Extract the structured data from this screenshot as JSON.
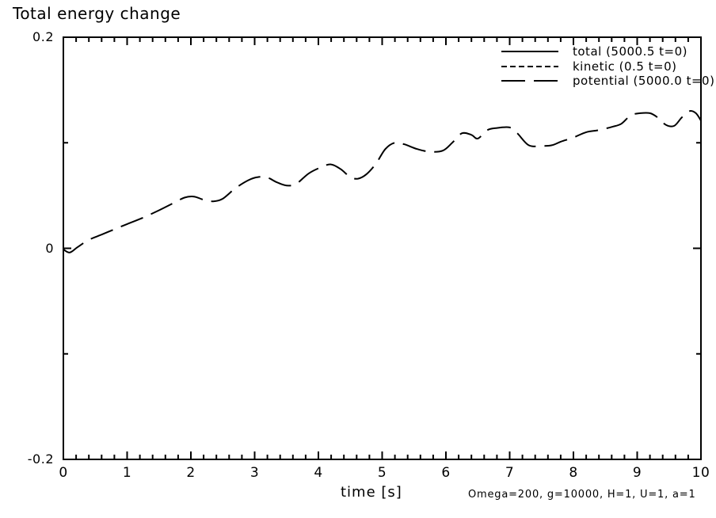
{
  "title": "Total energy change",
  "colors": {
    "foreground": "#000000",
    "background": "#ffffff"
  },
  "legend": {
    "entries": [
      {
        "label": "total (5000.5 t=0)",
        "line_style": "solid"
      },
      {
        "label": "kinetic (0.5 t=0)",
        "line_style": "short-dash"
      },
      {
        "label": "potential (5000.0 t=0)",
        "line_style": "long-dash"
      }
    ]
  },
  "footer": {
    "xlabel": "time [s]",
    "annotation": "Omega=200, g=10000, H=1, U=1, a=1"
  },
  "chart_data": {
    "type": "line",
    "title": "Total energy change",
    "xlabel": "time [s]",
    "ylabel": "",
    "xlim": [
      0,
      10
    ],
    "ylim": [
      -0.2,
      0.2
    ],
    "x_major_ticks": [
      0,
      1,
      2,
      3,
      4,
      5,
      6,
      7,
      8,
      9,
      10
    ],
    "x_tick_labels": [
      "0",
      "1",
      "2",
      "3",
      "4",
      "5",
      "6",
      "7",
      "8",
      "9",
      "10"
    ],
    "x_minor_step": 0.2,
    "y_major_ticks": [
      -0.2,
      0,
      0.2
    ],
    "y_tick_labels": [
      "-0.2",
      "0",
      "0.2"
    ],
    "y_minor_step": 0.1,
    "grid": false,
    "legend_position": "top-right",
    "series": [
      {
        "name": "potential (5000.0 t=0)",
        "line_style": "long-dash",
        "points": [
          [
            0.0,
            -0.001
          ],
          [
            0.1,
            -0.004
          ],
          [
            0.22,
            0.001
          ],
          [
            0.4,
            0.008
          ],
          [
            0.6,
            0.013
          ],
          [
            0.8,
            0.018
          ],
          [
            1.0,
            0.023
          ],
          [
            1.25,
            0.029
          ],
          [
            1.5,
            0.036
          ],
          [
            1.7,
            0.042
          ],
          [
            1.9,
            0.048
          ],
          [
            2.05,
            0.049
          ],
          [
            2.2,
            0.046
          ],
          [
            2.35,
            0.0445
          ],
          [
            2.5,
            0.047
          ],
          [
            2.7,
            0.057
          ],
          [
            2.9,
            0.0645
          ],
          [
            3.05,
            0.0675
          ],
          [
            3.2,
            0.067
          ],
          [
            3.35,
            0.0625
          ],
          [
            3.5,
            0.0595
          ],
          [
            3.65,
            0.061
          ],
          [
            3.85,
            0.071
          ],
          [
            4.05,
            0.077
          ],
          [
            4.2,
            0.0795
          ],
          [
            4.35,
            0.075
          ],
          [
            4.5,
            0.0675
          ],
          [
            4.62,
            0.066
          ],
          [
            4.75,
            0.07
          ],
          [
            4.9,
            0.08
          ],
          [
            5.05,
            0.094
          ],
          [
            5.2,
            0.1
          ],
          [
            5.35,
            0.0985
          ],
          [
            5.55,
            0.094
          ],
          [
            5.75,
            0.0915
          ],
          [
            5.95,
            0.0925
          ],
          [
            6.1,
            0.1
          ],
          [
            6.25,
            0.109
          ],
          [
            6.4,
            0.1075
          ],
          [
            6.5,
            0.104
          ],
          [
            6.65,
            0.112
          ],
          [
            6.8,
            0.114
          ],
          [
            7.0,
            0.1145
          ],
          [
            7.12,
            0.109
          ],
          [
            7.3,
            0.0976
          ],
          [
            7.5,
            0.097
          ],
          [
            7.66,
            0.0976
          ],
          [
            7.8,
            0.101
          ],
          [
            8.0,
            0.105
          ],
          [
            8.2,
            0.11
          ],
          [
            8.4,
            0.112
          ],
          [
            8.6,
            0.115
          ],
          [
            8.75,
            0.118
          ],
          [
            8.9,
            0.126
          ],
          [
            9.05,
            0.128
          ],
          [
            9.2,
            0.128
          ],
          [
            9.32,
            0.124
          ],
          [
            9.45,
            0.117
          ],
          [
            9.58,
            0.116
          ],
          [
            9.7,
            0.124
          ],
          [
            9.82,
            0.13
          ],
          [
            9.92,
            0.128
          ],
          [
            10.0,
            0.121
          ]
        ]
      }
    ]
  }
}
